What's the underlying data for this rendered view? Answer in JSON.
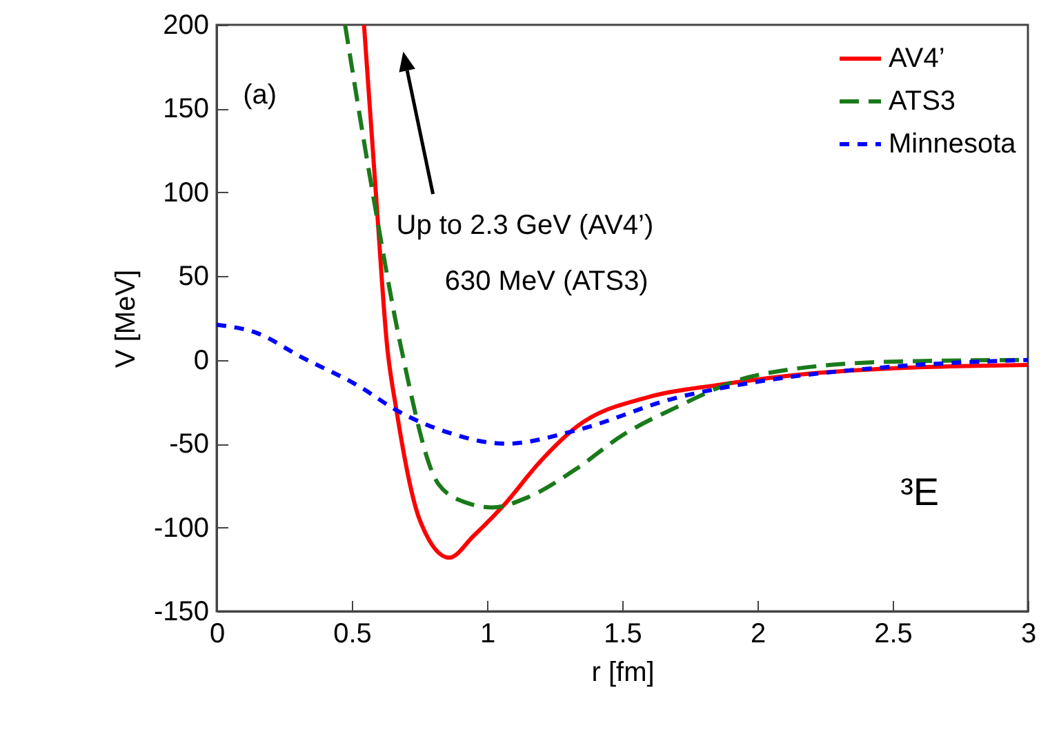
{
  "chart_data": {
    "type": "line",
    "xlabel": "r [fm]",
    "ylabel": "V [MeV]",
    "xlim": [
      0,
      3
    ],
    "ylim": [
      -150,
      200
    ],
    "xticks": [
      0,
      0.5,
      1,
      1.5,
      2,
      2.5,
      3
    ],
    "yticks": [
      -150,
      -100,
      -50,
      0,
      50,
      100,
      150,
      200
    ],
    "grid": false,
    "legend": "top right",
    "marker": "none",
    "annotations": [
      "(a)",
      "Up to 2.3 GeV (AV4’)",
      "630 MeV (ATS3)",
      "³E"
    ],
    "series": [
      {
        "name": "AV4’",
        "color": "#ff0000",
        "line_style": "solid",
        "x": [
          0.545,
          0.59,
          0.63,
          0.665,
          0.75,
          0.86,
          0.95,
          1.06,
          1.2,
          1.33,
          1.6,
          1.85,
          2.2,
          2.5,
          3
        ],
        "values": [
          200,
          97,
          9,
          -30,
          -95,
          -118,
          -105,
          -87,
          -60,
          -40,
          -22,
          -15,
          -8,
          -5,
          -3
        ]
      },
      {
        "name": "ATS3",
        "color": "#1a7a1a",
        "line_style": "dashed",
        "x": [
          0.475,
          0.58,
          0.68,
          0.82,
          0.92,
          1.02,
          1.15,
          1.33,
          1.5,
          1.69,
          2,
          2.5,
          3
        ],
        "values": [
          200,
          97,
          9,
          -74,
          -85,
          -88,
          -82,
          -65,
          -45,
          -29,
          -9,
          -1,
          0
        ]
      },
      {
        "name": "Minnesota",
        "color": "#0000ff",
        "line_style": "dotted",
        "x": [
          0,
          0.15,
          0.31,
          0.53,
          0.665,
          0.85,
          1.07,
          1.33,
          1.69,
          2,
          2.5,
          3
        ],
        "values": [
          21,
          16,
          2,
          -16,
          -30,
          -43,
          -50,
          -42,
          -23,
          -13,
          -4,
          0
        ]
      }
    ]
  }
}
